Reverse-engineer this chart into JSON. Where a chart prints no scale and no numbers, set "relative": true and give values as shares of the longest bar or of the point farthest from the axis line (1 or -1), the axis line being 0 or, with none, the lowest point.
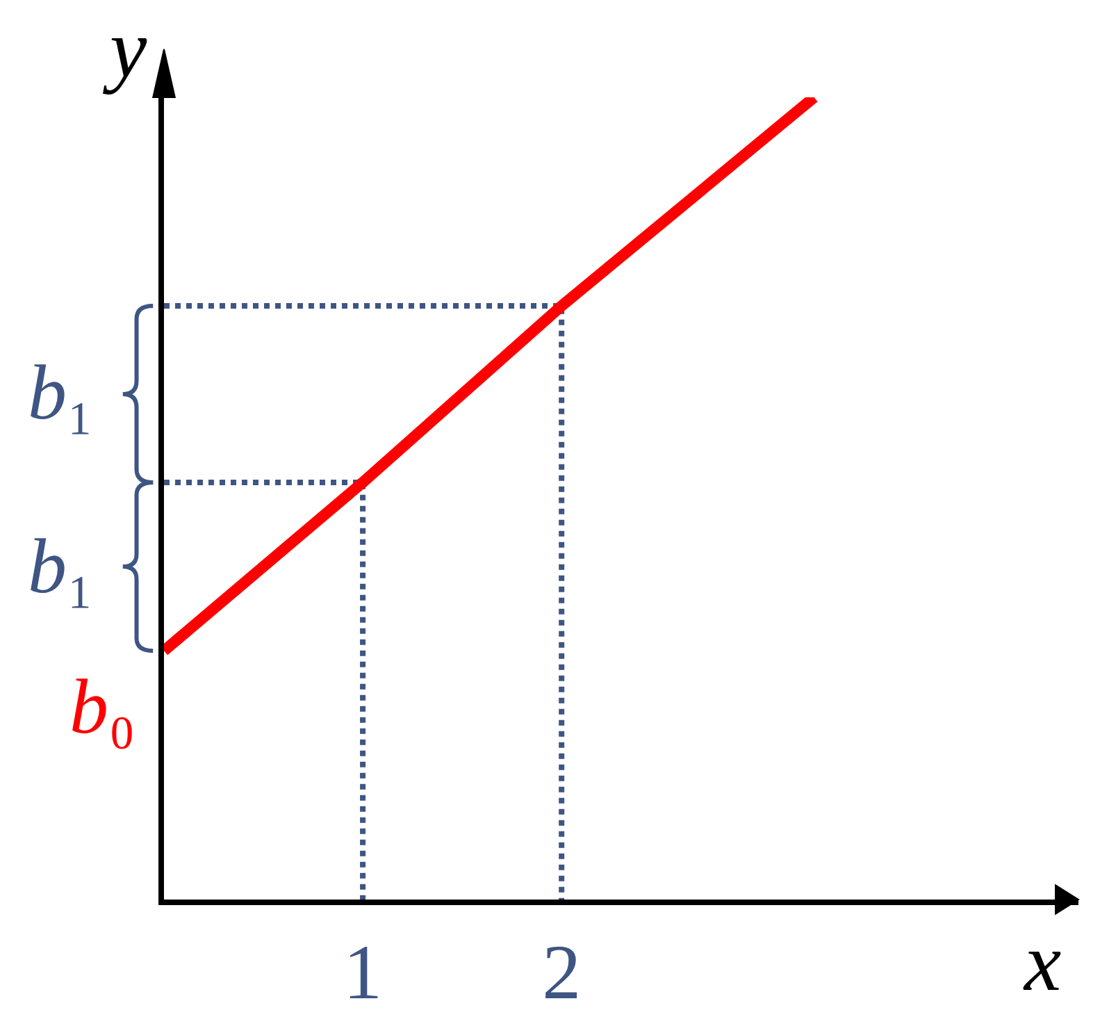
{
  "chart_data": {
    "type": "line",
    "relative": true,
    "xlabel": "x",
    "ylabel": "y",
    "xlim": [
      0,
      4.6
    ],
    "xticks": [
      1,
      2
    ],
    "marker": "none",
    "series": [
      {
        "color": "#ff0000",
        "x": [
          0,
          1,
          2,
          3.27
        ],
        "values": [
          0.31,
          0.52,
          0.74,
          1
        ]
      },
      {
        "color": "#3f5583",
        "line_style": "dotted",
        "x": [
          0,
          1,
          1
        ],
        "values": [
          0.52,
          0.52,
          0
        ]
      },
      {
        "color": "#3f5583",
        "line_style": "dotted",
        "x": [
          0,
          2,
          2
        ],
        "values": [
          0.74,
          0.74,
          0
        ]
      }
    ],
    "annotations": [
      {
        "text": "b₀",
        "x": 0,
        "y": 0.31
      },
      "b₁",
      "b₁"
    ]
  }
}
